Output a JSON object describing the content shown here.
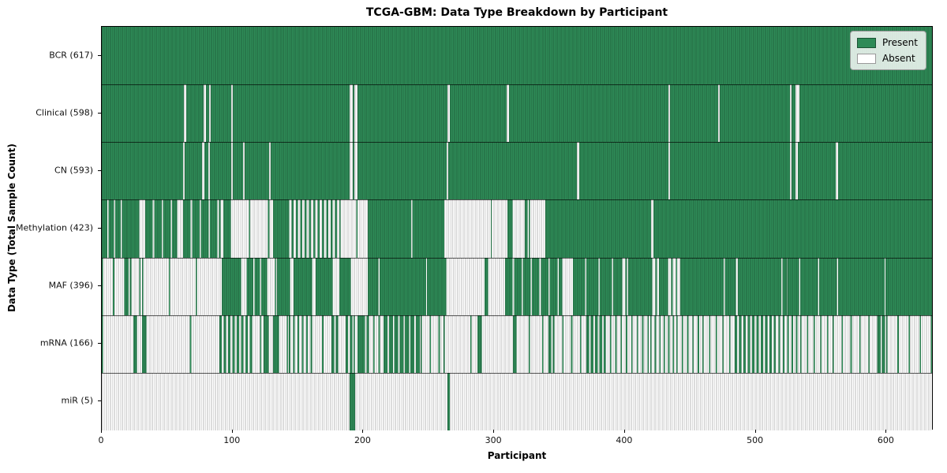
{
  "title": "TCGA-GBM: Data Type Breakdown by Participant",
  "x_axis_label": "Participant",
  "y_axis_label": "Data Type (Total Sample Count)",
  "legend": {
    "position": "upper right",
    "present_label": "Present",
    "absent_label": "Absent"
  },
  "colors": {
    "present": "#2e8b57",
    "absent": "#ffffff",
    "bar_edge": "rgba(0,0,0,0.28)",
    "row_divider": "rgba(0,0,0,0.65)"
  },
  "chart_data": {
    "type": "heatmap",
    "title": "TCGA-GBM: Data Type Breakdown by Participant",
    "xlabel": "Participant",
    "ylabel": "Data Type (Total Sample Count)",
    "xlim": [
      0,
      636
    ],
    "x_ticks": [
      0,
      100,
      200,
      300,
      400,
      500,
      600
    ],
    "grid": false,
    "legend_position": "upper right",
    "value_encoding": "segments are [start_participant, end_participant, fraction_present]",
    "rows": [
      {
        "label": "BCR (617)",
        "data_type": "BCR",
        "present_count": 617,
        "segments": [
          [
            0,
            636,
            1
          ]
        ]
      },
      {
        "label": "Clinical (598)",
        "data_type": "Clinical",
        "present_count": 598,
        "segments": [
          [
            0,
            63,
            1
          ],
          [
            63,
            64.5,
            0
          ],
          [
            64.5,
            78,
            1
          ],
          [
            78,
            79.5,
            0
          ],
          [
            79.5,
            82,
            1
          ],
          [
            82,
            83.5,
            0
          ],
          [
            83.5,
            99,
            1
          ],
          [
            99,
            100.5,
            0
          ],
          [
            100.5,
            190,
            1
          ],
          [
            190,
            192.5,
            0
          ],
          [
            192.5,
            193.5,
            1
          ],
          [
            193.5,
            196,
            0
          ],
          [
            196,
            265,
            1
          ],
          [
            265,
            266.5,
            0
          ],
          [
            266.5,
            310,
            1
          ],
          [
            310,
            312,
            0
          ],
          [
            312,
            434,
            1
          ],
          [
            434,
            435.5,
            0
          ],
          [
            435.5,
            472,
            1
          ],
          [
            472,
            473.5,
            0
          ],
          [
            473.5,
            527,
            1
          ],
          [
            527,
            528.5,
            0
          ],
          [
            528.5,
            531.5,
            1
          ],
          [
            531.5,
            534.5,
            0
          ],
          [
            534.5,
            636,
            1
          ]
        ]
      },
      {
        "label": "CN (593)",
        "data_type": "CN",
        "present_count": 593,
        "segments": [
          [
            0,
            62,
            1
          ],
          [
            62,
            63.5,
            0
          ],
          [
            63.5,
            77,
            1
          ],
          [
            77,
            78.5,
            0
          ],
          [
            78.5,
            81.5,
            1
          ],
          [
            81.5,
            83,
            0
          ],
          [
            83,
            99,
            1
          ],
          [
            99,
            100.5,
            0
          ],
          [
            100.5,
            108,
            1
          ],
          [
            108,
            109.5,
            0
          ],
          [
            109.5,
            128,
            1
          ],
          [
            128,
            129.5,
            0
          ],
          [
            129.5,
            190,
            1
          ],
          [
            190,
            192.5,
            0
          ],
          [
            192.5,
            193.5,
            1
          ],
          [
            193.5,
            196,
            0
          ],
          [
            196,
            264,
            1
          ],
          [
            264,
            265.5,
            0
          ],
          [
            265.5,
            364,
            1
          ],
          [
            364,
            365.5,
            0
          ],
          [
            365.5,
            434,
            1
          ],
          [
            434,
            435.5,
            0
          ],
          [
            435.5,
            527,
            1
          ],
          [
            527,
            528.5,
            0
          ],
          [
            528.5,
            531.5,
            1
          ],
          [
            531.5,
            533,
            0
          ],
          [
            533,
            562.5,
            1
          ],
          [
            562.5,
            564,
            0
          ],
          [
            564,
            636,
            1
          ]
        ]
      },
      {
        "label": "Methylation (423)",
        "data_type": "Methylation",
        "present_count": 423,
        "segments": [
          [
            0,
            19,
            0.8
          ],
          [
            19,
            28,
            1
          ],
          [
            28,
            33,
            0.15
          ],
          [
            33,
            57,
            0.85
          ],
          [
            57,
            62,
            0.1
          ],
          [
            62,
            90,
            0.85
          ],
          [
            90,
            93,
            0.1
          ],
          [
            93,
            98,
            1
          ],
          [
            98,
            131,
            0.07
          ],
          [
            131,
            142,
            1
          ],
          [
            142,
            182,
            0.5
          ],
          [
            182,
            204,
            0.08
          ],
          [
            204,
            262,
            0.97
          ],
          [
            262,
            311,
            0.02
          ],
          [
            311,
            314,
            0.9
          ],
          [
            314,
            324,
            0.05
          ],
          [
            324,
            327,
            0.6
          ],
          [
            327,
            340,
            0.03
          ],
          [
            340,
            421,
            1
          ],
          [
            421,
            422.5,
            0
          ],
          [
            422.5,
            636,
            1
          ]
        ]
      },
      {
        "label": "MAF (396)",
        "data_type": "MAF",
        "present_count": 396,
        "segments": [
          [
            0,
            18,
            0.12
          ],
          [
            18,
            22,
            0.7
          ],
          [
            22,
            31,
            0.15
          ],
          [
            31,
            92,
            0.05
          ],
          [
            92,
            106,
            0.95
          ],
          [
            106,
            112,
            0.2
          ],
          [
            112,
            126,
            0.8
          ],
          [
            126,
            134,
            0.15
          ],
          [
            134,
            143,
            0.95
          ],
          [
            143,
            147,
            0.1
          ],
          [
            147,
            160,
            0.95
          ],
          [
            160,
            164,
            0.1
          ],
          [
            164,
            176,
            0.95
          ],
          [
            176,
            182,
            0.15
          ],
          [
            182,
            190,
            0.9
          ],
          [
            190,
            204,
            0.05
          ],
          [
            204,
            211,
            0.9
          ],
          [
            211,
            213,
            0.1
          ],
          [
            213,
            263,
            0.98
          ],
          [
            263,
            293,
            0.03
          ],
          [
            293,
            295,
            0.8
          ],
          [
            295,
            309,
            0.03
          ],
          [
            309,
            352,
            0.85
          ],
          [
            352,
            361,
            0.1
          ],
          [
            361,
            398,
            0.9
          ],
          [
            398,
            403,
            0.3
          ],
          [
            403,
            421,
            0.95
          ],
          [
            421,
            427,
            0.3
          ],
          [
            427,
            433,
            0.9
          ],
          [
            433,
            443,
            0.3
          ],
          [
            443,
            485,
            0.97
          ],
          [
            485,
            487,
            0.2
          ],
          [
            487,
            524,
            0.97
          ],
          [
            524,
            525.5,
            0.2
          ],
          [
            525.5,
            533,
            0.9
          ],
          [
            533,
            535,
            0.2
          ],
          [
            535,
            548,
            0.95
          ],
          [
            548,
            549.5,
            0.3
          ],
          [
            549.5,
            562,
            0.95
          ],
          [
            562,
            564,
            0.2
          ],
          [
            564,
            636,
            0.98
          ]
        ]
      },
      {
        "label": "mRNA (166)",
        "data_type": "mRNA",
        "present_count": 166,
        "segments": [
          [
            0,
            24,
            0.04
          ],
          [
            24,
            26,
            0.9
          ],
          [
            26,
            31,
            0.1
          ],
          [
            31,
            33,
            0.8
          ],
          [
            33,
            90,
            0.03
          ],
          [
            90,
            114,
            0.55
          ],
          [
            114,
            124,
            0.15
          ],
          [
            124,
            127,
            0.9
          ],
          [
            127,
            131,
            0.2
          ],
          [
            131,
            135,
            0.8
          ],
          [
            135,
            143,
            0.15
          ],
          [
            143,
            160,
            0.35
          ],
          [
            160,
            176,
            0.12
          ],
          [
            176,
            180,
            0.6
          ],
          [
            180,
            187,
            0.1
          ],
          [
            187,
            193,
            0.5
          ],
          [
            193,
            196,
            0.1
          ],
          [
            196,
            204,
            0.85
          ],
          [
            204,
            216,
            0.25
          ],
          [
            216,
            244,
            0.75
          ],
          [
            244,
            262,
            0.15
          ],
          [
            262,
            288,
            0.05
          ],
          [
            288,
            290,
            0.8
          ],
          [
            290,
            315,
            0.04
          ],
          [
            315,
            317,
            0.8
          ],
          [
            317,
            342,
            0.1
          ],
          [
            342,
            346,
            0.6
          ],
          [
            346,
            371,
            0.15
          ],
          [
            371,
            385,
            0.6
          ],
          [
            385,
            420,
            0.25
          ],
          [
            420,
            440,
            0.3
          ],
          [
            440,
            460,
            0.25
          ],
          [
            460,
            485,
            0.2
          ],
          [
            485,
            515,
            0.55
          ],
          [
            515,
            535,
            0.4
          ],
          [
            535,
            560,
            0.2
          ],
          [
            560,
            594,
            0.15
          ],
          [
            594,
            601,
            0.7
          ],
          [
            601,
            636,
            0.12
          ]
        ]
      },
      {
        "label": "miR (5)",
        "data_type": "miR",
        "present_count": 5,
        "segments": [
          [
            0,
            190,
            0
          ],
          [
            190,
            194,
            1
          ],
          [
            194,
            265,
            0
          ],
          [
            265,
            266.5,
            1
          ],
          [
            266.5,
            636,
            0
          ]
        ]
      }
    ]
  }
}
